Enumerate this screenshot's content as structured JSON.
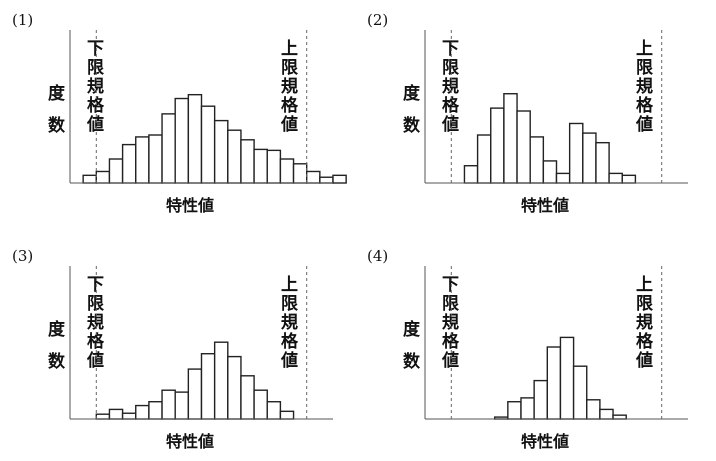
{
  "common": {
    "lower_limit_label": "下限規格値",
    "upper_limit_label": "上限規格値",
    "ylabel": "度数",
    "xlabel": "特性値"
  },
  "chart_data": [
    {
      "type": "bar",
      "label": "(1)",
      "xlabel": "特性値",
      "ylabel": "度数",
      "lower_limit": 2.0,
      "upper_limit": 18.0,
      "bin_start": 1.0,
      "values": [
        8,
        12,
        25,
        40,
        48,
        50,
        72,
        88,
        92,
        80,
        65,
        55,
        45,
        35,
        34,
        25,
        20,
        12,
        6,
        8
      ]
    },
    {
      "type": "bar",
      "label": "(2)",
      "xlabel": "特性値",
      "ylabel": "度数",
      "lower_limit": 2.0,
      "upper_limit": 18.0,
      "bin_start": 3.0,
      "values": [
        18,
        50,
        78,
        93,
        75,
        48,
        23,
        10,
        62,
        52,
        42,
        10,
        8
      ]
    },
    {
      "type": "bar",
      "label": "(3)",
      "xlabel": "特性値",
      "ylabel": "度数",
      "lower_limit": 2.0,
      "upper_limit": 18.0,
      "bin_start": 2.0,
      "values": [
        5,
        10,
        6,
        14,
        18,
        30,
        28,
        52,
        68,
        80,
        65,
        45,
        30,
        18,
        8
      ]
    },
    {
      "type": "bar",
      "label": "(4)",
      "xlabel": "特性値",
      "ylabel": "度数",
      "lower_limit": 2.0,
      "upper_limit": 18.0,
      "bin_start": 5.3,
      "values": [
        2,
        18,
        22,
        40,
        75,
        85,
        55,
        20,
        10,
        4
      ]
    }
  ]
}
